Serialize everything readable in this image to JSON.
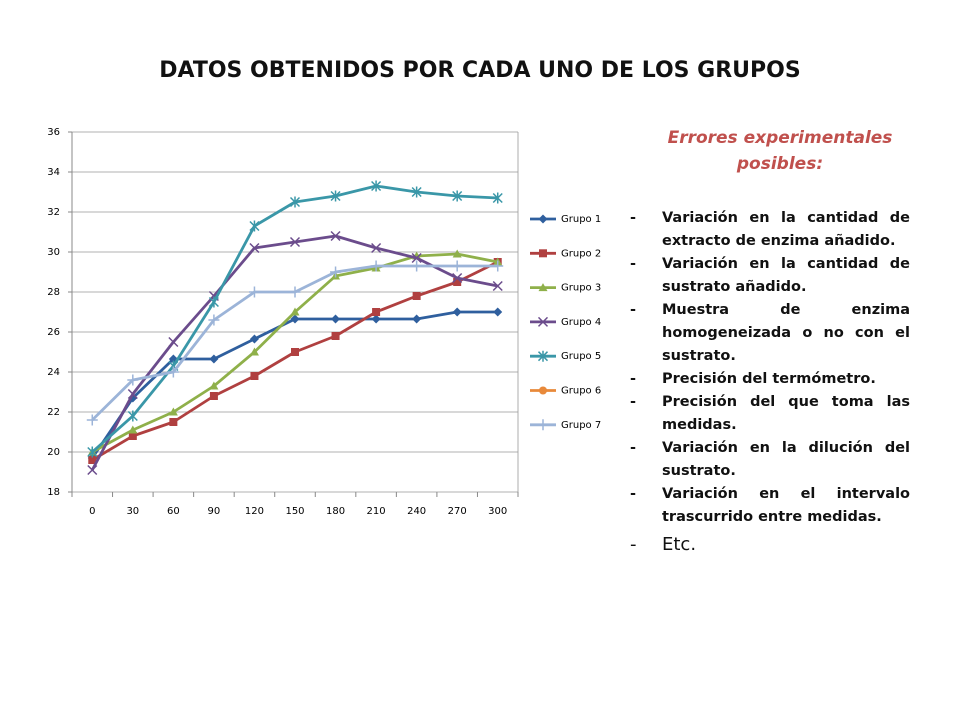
{
  "chart_data": {
    "type": "line",
    "title": "DATOS OBTENIDOS POR CADA UNO DE LOS GRUPOS",
    "categories": [
      "0",
      "30",
      "60",
      "90",
      "120",
      "150",
      "180",
      "210",
      "240",
      "270",
      "300"
    ],
    "series": [
      {
        "name": "Grupo 1",
        "color": "#2f5f9e",
        "marker": "diamond",
        "values": [
          19.7,
          22.7,
          24.65,
          24.65,
          25.65,
          26.65,
          26.65,
          26.65,
          26.65,
          27,
          27
        ]
      },
      {
        "name": "Grupo 2",
        "color": "#b04040",
        "marker": "square",
        "values": [
          19.6,
          20.8,
          21.5,
          22.8,
          23.8,
          25,
          25.8,
          27,
          27.8,
          28.5,
          29.5
        ]
      },
      {
        "name": "Grupo 3",
        "color": "#8fb04a",
        "marker": "triangle",
        "values": [
          20,
          21.1,
          22,
          23.3,
          25,
          27,
          28.8,
          29.2,
          29.8,
          29.9,
          29.5
        ]
      },
      {
        "name": "Grupo 4",
        "color": "#6b4c8c",
        "marker": "x",
        "values": [
          19.1,
          22.9,
          25.5,
          27.8,
          30.2,
          30.5,
          30.8,
          30.2,
          29.7,
          28.7,
          28.3
        ]
      },
      {
        "name": "Grupo 5",
        "color": "#3a97a8",
        "marker": "star",
        "values": [
          20,
          21.8,
          24.3,
          27.5,
          31.3,
          32.5,
          32.8,
          33.3,
          33,
          32.8,
          32.7
        ]
      },
      {
        "name": "Grupo 6",
        "color": "#e8893a",
        "marker": "circle",
        "values": [
          null,
          null,
          null,
          null,
          null,
          null,
          null,
          null,
          null,
          null,
          null
        ]
      },
      {
        "name": "Grupo 7",
        "color": "#9cb4d8",
        "marker": "plus",
        "values": [
          21.6,
          23.6,
          24,
          26.6,
          28,
          28,
          29,
          29.3,
          29.3,
          29.3,
          29.3
        ]
      }
    ],
    "ylim": [
      18,
      36
    ],
    "yticks": [
      18,
      20,
      22,
      24,
      26,
      28,
      30,
      32,
      34,
      36
    ],
    "grid": true,
    "legend": "right"
  },
  "notes": {
    "title": "Errores experimentales posibles:",
    "items": [
      {
        "bullet": "-",
        "text": "Variación en la cantidad de extracto de enzima añadido."
      },
      {
        "bullet": "-",
        "text": "Variación en la cantidad de sustrato añadido."
      },
      {
        "bullet": "-",
        "text": "Muestra de enzima homogeneizada o no con el sustrato."
      },
      {
        "bullet": "-",
        "text": "Precisión del termómetro."
      },
      {
        "bullet": "-",
        "text": "Precisión del que toma las medidas."
      },
      {
        "bullet": "-",
        "text": "Variación en la dilución del sustrato."
      },
      {
        "bullet": "-",
        "text": "Variación en el intervalo trascurrido entre medidas."
      },
      {
        "bullet": "-",
        "text": "Etc."
      }
    ]
  }
}
